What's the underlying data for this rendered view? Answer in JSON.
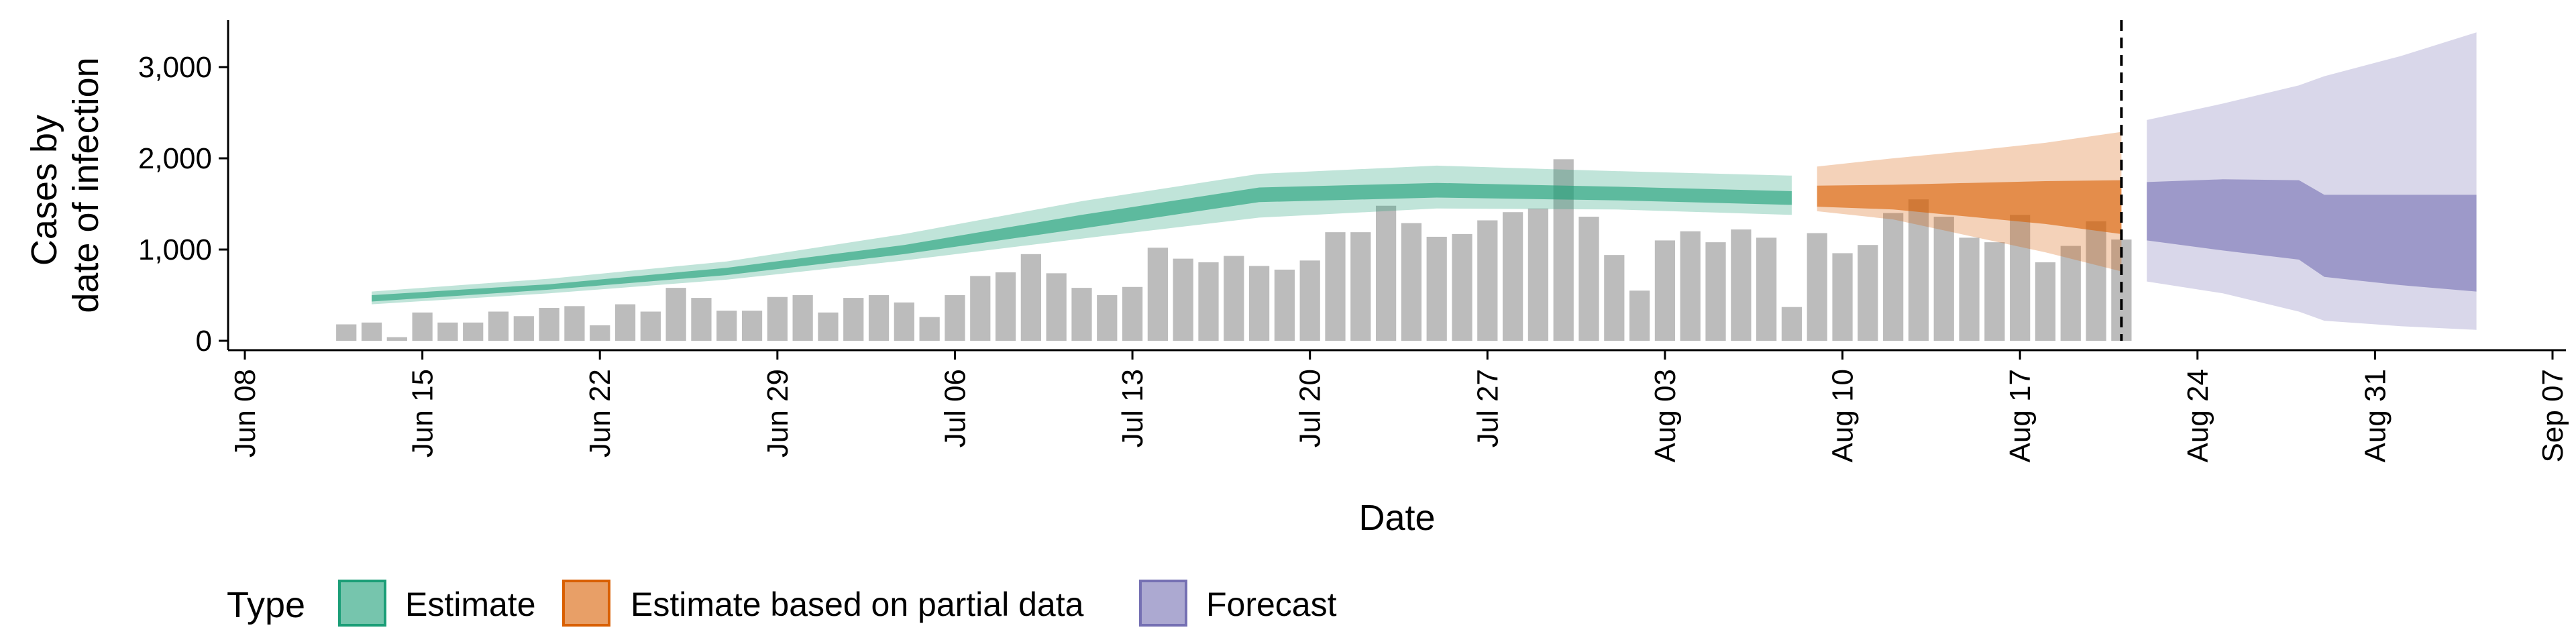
{
  "chart_data": {
    "type": "area",
    "title": "",
    "xlabel": "Date",
    "ylabel_lines": [
      "Cases by",
      "date of infection"
    ],
    "x_start": "2020-06-08",
    "x_end": "2020-09-07",
    "x_ticks": [
      "Jun 08",
      "Jun 15",
      "Jun 22",
      "Jun 29",
      "Jul 06",
      "Jul 13",
      "Jul 20",
      "Jul 27",
      "Aug 03",
      "Aug 10",
      "Aug 17",
      "Aug 24",
      "Aug 31",
      "Sep 07"
    ],
    "y_ticks": [
      "0",
      "1,000",
      "2,000",
      "3,000"
    ],
    "ylim": [
      0,
      3500
    ],
    "forecast_date": "2020-08-21",
    "legend": {
      "title": "Type",
      "items": [
        {
          "label": "Estimate",
          "fill": "#1b9e77",
          "border": "#1b9e77"
        },
        {
          "label": "Estimate based on partial data",
          "fill": "#d95f02",
          "border": "#d95f02"
        },
        {
          "label": "Forecast",
          "fill": "#7570b3",
          "border": "#7570b3"
        }
      ]
    },
    "bars": {
      "color": "#a6a6a6",
      "start": "2020-06-12",
      "values": [
        180,
        200,
        40,
        310,
        200,
        200,
        320,
        270,
        360,
        380,
        170,
        400,
        320,
        580,
        470,
        330,
        330,
        480,
        500,
        310,
        470,
        500,
        420,
        260,
        500,
        710,
        750,
        950,
        740,
        580,
        500,
        590,
        1020,
        900,
        860,
        930,
        820,
        780,
        880,
        1190,
        1190,
        1480,
        1290,
        1140,
        1170,
        1320,
        1410,
        1450,
        1990,
        1360,
        940,
        550,
        1100,
        1200,
        1080,
        1220,
        1130,
        370,
        1180,
        960,
        1050,
        1400,
        1550,
        1360,
        1130,
        1080,
        1380,
        860,
        1040,
        1310,
        1110
      ]
    },
    "series": [
      {
        "name": "Estimate",
        "color": "#1b9e77",
        "x": [
          "2020-06-13",
          "2020-06-20",
          "2020-06-27",
          "2020-07-04",
          "2020-07-11",
          "2020-07-18",
          "2020-07-25",
          "2020-08-01",
          "2020-08-08"
        ],
        "lower90": [
          400,
          520,
          670,
          880,
          1120,
          1350,
          1450,
          1440,
          1380
        ],
        "lower50": [
          430,
          560,
          720,
          950,
          1230,
          1520,
          1570,
          1540,
          1490
        ],
        "upper50": [
          500,
          620,
          800,
          1050,
          1380,
          1680,
          1730,
          1690,
          1640
        ],
        "upper90": [
          540,
          680,
          870,
          1170,
          1530,
          1830,
          1920,
          1860,
          1810
        ]
      },
      {
        "name": "Estimate based on partial data",
        "color": "#d95f02",
        "x": [
          "2020-08-09",
          "2020-08-12",
          "2020-08-15",
          "2020-08-18",
          "2020-08-21"
        ],
        "lower90": [
          1420,
          1330,
          1150,
          970,
          760
        ],
        "lower50": [
          1470,
          1440,
          1360,
          1280,
          1170
        ],
        "upper50": [
          1700,
          1710,
          1730,
          1750,
          1760
        ],
        "upper90": [
          1910,
          2000,
          2080,
          2170,
          2290
        ]
      },
      {
        "name": "Forecast",
        "color": "#7570b3",
        "x": [
          "2020-08-22",
          "2020-08-25",
          "2020-08-28",
          "2020-08-29",
          "2020-09-01",
          "2020-09-04"
        ],
        "lower90": [
          650,
          520,
          320,
          220,
          160,
          120
        ],
        "lower50": [
          1100,
          990,
          890,
          700,
          610,
          540
        ],
        "upper50": [
          1740,
          1770,
          1760,
          1600,
          1600,
          1600
        ],
        "upper90": [
          2420,
          2600,
          2800,
          2900,
          3120,
          3380
        ]
      }
    ]
  }
}
